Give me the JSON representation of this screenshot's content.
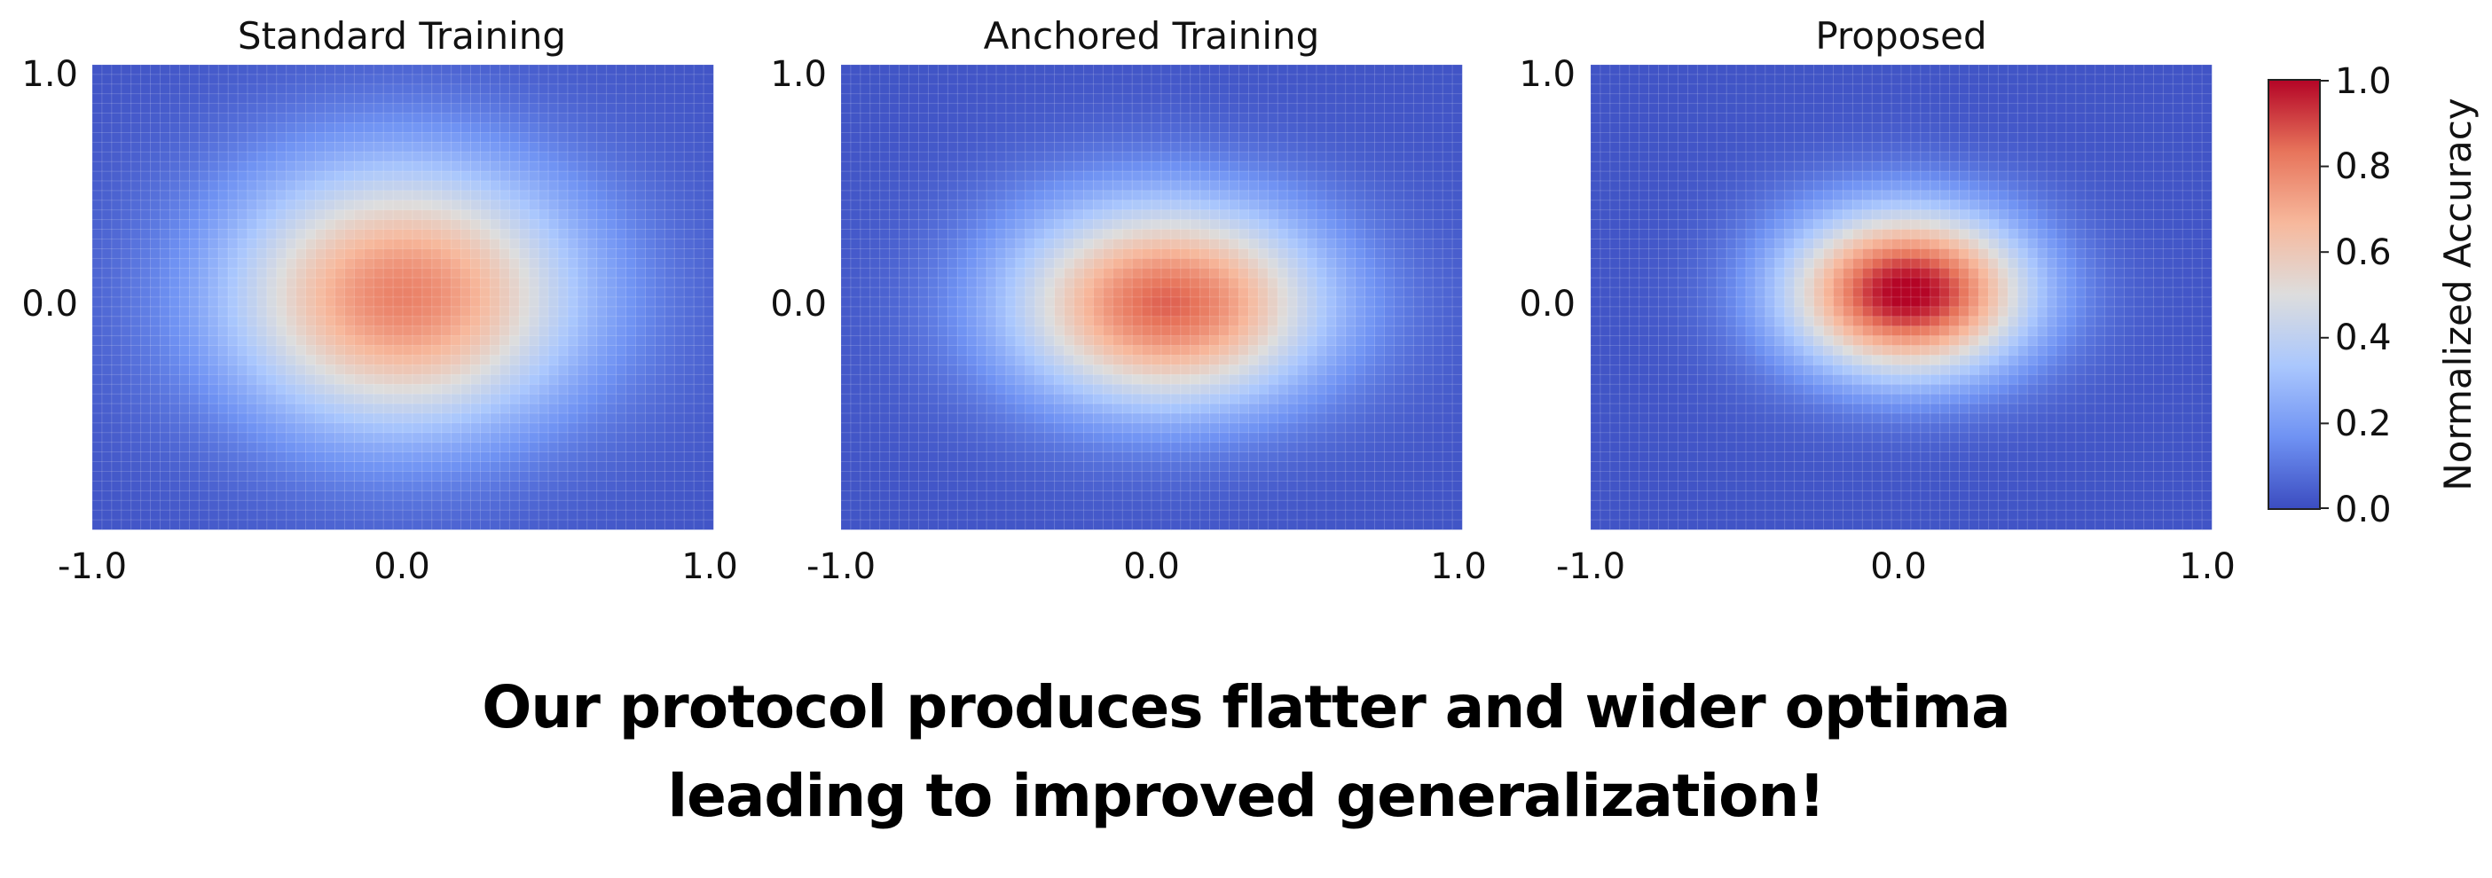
{
  "chart_data": {
    "type": "heatmap",
    "panels": [
      {
        "title": "Standard Training",
        "xlim": [
          -1.0,
          1.0
        ],
        "ylim": [
          -1.0,
          1.0
        ],
        "x_ticks": [
          "-1.0",
          "0.0",
          "1.0"
        ],
        "y_ticks": [
          "1.0",
          "0.0"
        ],
        "peak": {
          "x": 0.0,
          "y": 0.0,
          "value": 0.78
        },
        "spread": {
          "sx": 0.62,
          "sy": 0.62
        }
      },
      {
        "title": "Anchored Training",
        "xlim": [
          -1.0,
          1.0
        ],
        "ylim": [
          -1.0,
          1.0
        ],
        "x_ticks": [
          "-1.0",
          "0.0",
          "1.0"
        ],
        "y_ticks": [
          "1.0",
          "0.0"
        ],
        "peak": {
          "x": 0.05,
          "y": -0.03,
          "value": 0.84
        },
        "spread": {
          "sx": 0.55,
          "sy": 0.48
        }
      },
      {
        "title": "Proposed",
        "xlim": [
          -1.0,
          1.0
        ],
        "ylim": [
          -1.0,
          1.0
        ],
        "x_ticks": [
          "-1.0",
          "0.0",
          "1.0"
        ],
        "y_ticks": [
          "1.0",
          "0.0"
        ],
        "peak": {
          "x": 0.02,
          "y": 0.02,
          "value": 1.0
        },
        "spread": {
          "sx": 0.42,
          "sy": 0.38
        }
      }
    ],
    "colorbar": {
      "label": "Normalized Accuracy",
      "range": [
        0.0,
        1.0
      ],
      "ticks": [
        "1.0",
        "0.8",
        "0.6",
        "0.4",
        "0.2",
        "0.0"
      ],
      "colormap": "coolwarm",
      "colormap_stops": [
        "#3b4cc0",
        "#6f92f3",
        "#aac7fd",
        "#dddddd",
        "#f7b89c",
        "#e7745b",
        "#b40426"
      ]
    },
    "grid": false
  },
  "caption": {
    "line1": "Our protocol produces flatter and wider optima",
    "line2": "leading to improved generalization!"
  }
}
